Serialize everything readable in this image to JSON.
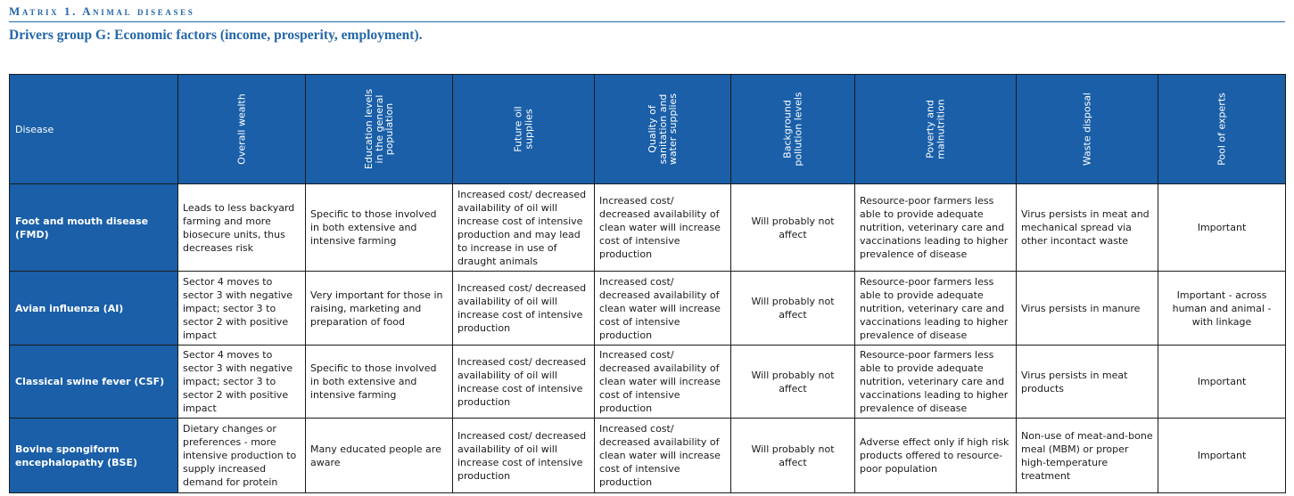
{
  "matrix_title": "Matrix 1. Animal diseases",
  "subtitle": "Drivers group G: Economic factors (income, prosperity, employment).",
  "table": {
    "columns": [
      "Disease",
      "Overall wealth",
      "Education levels\nin the general\npopulation",
      "Future oil\nsupplies",
      "Quality of\nsanitation and\nwater supplies",
      "Background\npollution levels",
      "Poverty and\nmalnutrition",
      "Waste disposal",
      "Pool of experts"
    ],
    "rows": [
      {
        "disease": "Foot and mouth disease (FMD)",
        "cells": [
          "Leads to less backyard farming and more biosecure units, thus decreases risk",
          "Specific to those involved in both extensive and intensive farming",
          "Increased cost/ decreased availability of oil will increase cost of intensive production and may lead to increase in use of draught animals",
          "Increased cost/ decreased availability of clean water will increase cost of intensive production",
          "Will probably not affect",
          "Resource-poor farmers less able to provide adequate nutrition, veterinary care and vaccinations leading to higher prevalence of disease",
          "Virus persists in meat and mechanical spread via other incontact waste",
          "Important"
        ]
      },
      {
        "disease": "Avian influenza (AI)",
        "cells": [
          "Sector 4 moves to sector 3 with negative impact; sector 3 to sector 2 with positive impact",
          "Very important for those in raising, marketing and preparation of food",
          "Increased cost/ decreased availability of oil will increase cost of intensive production",
          "Increased cost/ decreased availability of clean water will increase cost of intensive production",
          "Will probably not affect",
          "Resource-poor farmers less able to provide adequate nutrition, veterinary care and vaccinations leading to higher prevalence of disease",
          "Virus persists in manure",
          "Important - across human and animal - with linkage"
        ]
      },
      {
        "disease": "Classical swine fever (CSF)",
        "cells": [
          "Sector 4 moves to sector 3 with negative impact; sector 3 to sector 2 with positive impact",
          "Specific to those involved in both extensive and intensive farming",
          "Increased cost/ decreased availability of oil will increase cost of intensive production",
          "Increased cost/ decreased availability of clean water will increase cost of intensive production",
          "Will probably not affect",
          "Resource-poor farmers less able to provide adequate nutrition, veterinary care and vaccinations leading to higher prevalence of disease",
          "Virus persists in meat products",
          "Important"
        ]
      },
      {
        "disease": "Bovine spongiform encephalopathy (BSE)",
        "cells": [
          "Dietary changes or preferences - more intensive production to supply increased demand for protein",
          "Many educated people are aware",
          "Increased cost/ decreased availability of oil will increase cost of intensive production",
          "Increased cost/ decreased availability of clean water will increase cost of intensive production",
          "Will probably not affect",
          "Adverse effect only if high risk products offered to resource-poor population",
          "Non-use of meat-and-bone meal (MBM) or proper high-temperature treatment",
          "Important"
        ]
      }
    ]
  }
}
